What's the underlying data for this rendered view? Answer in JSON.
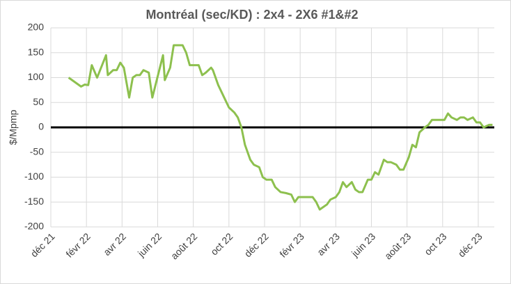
{
  "chart_data": {
    "type": "line",
    "title": "Montréal (sec/KD) :  2x4 - 2X6 #1&#2",
    "y_label": "$/Mpmp",
    "x": [
      1.0,
      1.7,
      1.9,
      2.1,
      2.3,
      2.6,
      3.1,
      3.2,
      3.5,
      3.7,
      3.9,
      4.1,
      4.4,
      4.6,
      4.8,
      5.0,
      5.2,
      5.5,
      5.7,
      6.3,
      6.4,
      6.7,
      6.9,
      7.4,
      7.6,
      7.8,
      8.3,
      8.5,
      8.7,
      9.0,
      9.1,
      9.4,
      9.6,
      9.8,
      10.0,
      10.3,
      10.5,
      10.7,
      10.9,
      11.2,
      11.4,
      11.7,
      11.9,
      12.1,
      12.4,
      12.6,
      12.9,
      13.2,
      13.5,
      13.7,
      13.9,
      14.3,
      14.7,
      14.9,
      15.1,
      15.3,
      15.5,
      15.7,
      16.0,
      16.2,
      16.4,
      16.6,
      16.9,
      17.1,
      17.3,
      17.5,
      17.8,
      18.0,
      18.2,
      18.4,
      18.7,
      18.9,
      19.1,
      19.4,
      19.6,
      19.8,
      20.1,
      20.3,
      20.5,
      20.7,
      21.0,
      21.2,
      21.4,
      21.6,
      21.9,
      22.1,
      22.3,
      22.5,
      22.8,
      23.0,
      23.2,
      23.4,
      23.7,
      23.9,
      24.1,
      24.3,
      24.6,
      24.8
    ],
    "series": [
      {
        "name": "Montréal",
        "color": "#8dc04e",
        "values": [
          100,
          82,
          86,
          85,
          125,
          100,
          145,
          105,
          115,
          115,
          130,
          120,
          60,
          100,
          105,
          105,
          115,
          110,
          60,
          145,
          95,
          120,
          165,
          165,
          150,
          125,
          125,
          105,
          110,
          120,
          115,
          85,
          70,
          55,
          40,
          30,
          20,
          0,
          -35,
          -65,
          -75,
          -80,
          -100,
          -105,
          -105,
          -120,
          -130,
          -132,
          -135,
          -150,
          -140,
          -140,
          -140,
          -150,
          -165,
          -160,
          -155,
          -145,
          -140,
          -130,
          -110,
          -120,
          -110,
          -125,
          -130,
          -130,
          -105,
          -105,
          -90,
          -95,
          -65,
          -70,
          -70,
          -75,
          -85,
          -85,
          -60,
          -35,
          -40,
          -10,
          0,
          5,
          15,
          15,
          15,
          15,
          28,
          20,
          15,
          20,
          20,
          15,
          20,
          10,
          10,
          0,
          5,
          5
        ]
      }
    ],
    "xlim": [
      0,
      24.9
    ],
    "xticks": [
      {
        "value": 0,
        "label": "déc 21"
      },
      {
        "value": 2,
        "label": "févr 22"
      },
      {
        "value": 4,
        "label": "avr 22"
      },
      {
        "value": 6,
        "label": "juin 22"
      },
      {
        "value": 8,
        "label": "août 22"
      },
      {
        "value": 10,
        "label": "oct 22"
      },
      {
        "value": 12,
        "label": "déc 22"
      },
      {
        "value": 14,
        "label": "févr 23"
      },
      {
        "value": 16,
        "label": "avr 23"
      },
      {
        "value": 18,
        "label": "juin 23"
      },
      {
        "value": 20,
        "label": "août 23"
      },
      {
        "value": 22,
        "label": "oct 23"
      },
      {
        "value": 24,
        "label": "déc 23"
      }
    ],
    "ylim": [
      -200,
      200
    ],
    "yticks": [
      -200,
      -150,
      -100,
      -50,
      0,
      50,
      100,
      150,
      200
    ],
    "grid": true
  }
}
